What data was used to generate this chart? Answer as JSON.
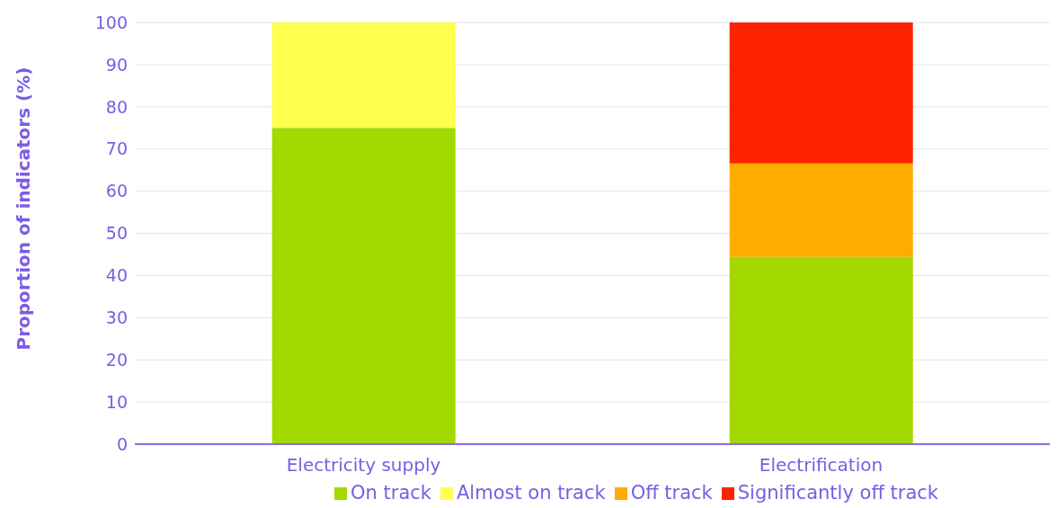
{
  "chart_data": {
    "type": "bar",
    "ylabel": "Proportion of indicators (%)",
    "categories": [
      "Electricity supply",
      "Electrification"
    ],
    "series": [
      {
        "name": "On track",
        "color": "#a2d900",
        "values": [
          75,
          44.4
        ]
      },
      {
        "name": "Almost on track",
        "color": "#ffff4d",
        "values": [
          25,
          0
        ]
      },
      {
        "name": "Off track",
        "color": "#ffab00",
        "values": [
          0,
          22.2
        ]
      },
      {
        "name": "Significantly off track",
        "color": "#ff2200",
        "values": [
          0,
          33.4
        ]
      }
    ],
    "stacked": true,
    "ylim": [
      0,
      100
    ],
    "yticks": [
      0,
      10,
      20,
      30,
      40,
      50,
      60,
      70,
      80,
      90,
      100
    ],
    "grid": "y",
    "legend": "bottom"
  }
}
